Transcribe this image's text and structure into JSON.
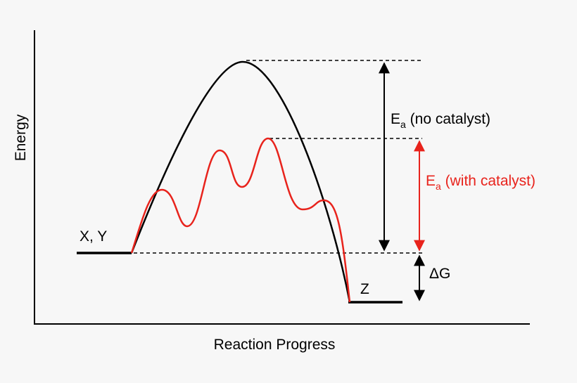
{
  "colors": {
    "background": "#f7f7f7",
    "uncatalyzed": "#000000",
    "catalyzed": "#e8231c",
    "guide": "#000000"
  },
  "axes": {
    "y_label": "Energy",
    "x_label": "Reaction Progress"
  },
  "reactants": {
    "label": "X, Y"
  },
  "products": {
    "label": "Z"
  },
  "ea_no_catalyst": {
    "symbol": "E",
    "subscript": "a",
    "text": " (no catalyst)"
  },
  "ea_with_catalyst": {
    "symbol": "E",
    "subscript": "a",
    "text": " (with catalyst)"
  },
  "delta_g": {
    "label": "ΔG"
  }
}
